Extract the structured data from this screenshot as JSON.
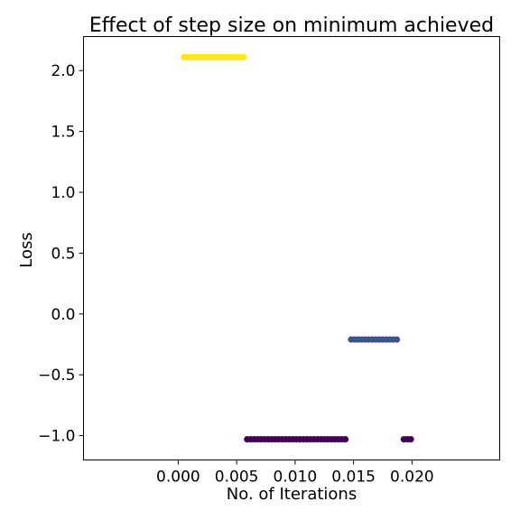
{
  "chart_data": {
    "type": "scatter",
    "title": "Effect of step size on minimum achieved",
    "xlabel": "No. of Iterations",
    "ylabel": "Loss",
    "xlim": [
      -0.0081,
      0.0275
    ],
    "ylim": [
      -1.2,
      2.28
    ],
    "xticks": [
      0.0,
      0.005,
      0.01,
      0.015,
      0.02
    ],
    "xtick_labels": [
      "0.000",
      "0.005",
      "0.010",
      "0.015",
      "0.020"
    ],
    "yticks": [
      -1.0,
      -0.5,
      0.0,
      0.5,
      1.0,
      1.5,
      2.0
    ],
    "ytick_labels": [
      "−1.0",
      "−0.5",
      "0.0",
      "0.5",
      "1.0",
      "1.5",
      "2.0"
    ],
    "grid": false,
    "series": [
      {
        "color": "#fde725",
        "points": [
          {
            "x": 0.0005,
            "y": 2.11
          },
          {
            "x": 0.0008,
            "y": 2.11
          },
          {
            "x": 0.0011,
            "y": 2.11
          },
          {
            "x": 0.0014,
            "y": 2.11
          },
          {
            "x": 0.0017,
            "y": 2.11
          },
          {
            "x": 0.002,
            "y": 2.11
          },
          {
            "x": 0.0023,
            "y": 2.11
          },
          {
            "x": 0.0026,
            "y": 2.11
          },
          {
            "x": 0.0029,
            "y": 2.11
          },
          {
            "x": 0.0032,
            "y": 2.11
          },
          {
            "x": 0.0035,
            "y": 2.11
          },
          {
            "x": 0.0038,
            "y": 2.11
          },
          {
            "x": 0.0041,
            "y": 2.11
          },
          {
            "x": 0.0044,
            "y": 2.11
          },
          {
            "x": 0.0047,
            "y": 2.11
          },
          {
            "x": 0.005,
            "y": 2.11
          },
          {
            "x": 0.0053,
            "y": 2.11
          },
          {
            "x": 0.0056,
            "y": 2.11
          }
        ]
      },
      {
        "color": "#3b528b",
        "points": [
          {
            "x": 0.0148,
            "y": -0.21
          },
          {
            "x": 0.0151,
            "y": -0.21
          },
          {
            "x": 0.0154,
            "y": -0.21
          },
          {
            "x": 0.0157,
            "y": -0.21
          },
          {
            "x": 0.016,
            "y": -0.21
          },
          {
            "x": 0.0163,
            "y": -0.21
          },
          {
            "x": 0.0166,
            "y": -0.21
          },
          {
            "x": 0.0169,
            "y": -0.21
          },
          {
            "x": 0.0172,
            "y": -0.21
          },
          {
            "x": 0.0175,
            "y": -0.21
          },
          {
            "x": 0.0178,
            "y": -0.21
          },
          {
            "x": 0.0181,
            "y": -0.21
          },
          {
            "x": 0.0184,
            "y": -0.21
          },
          {
            "x": 0.0187,
            "y": -0.21
          }
        ]
      },
      {
        "color": "#440154",
        "points": [
          {
            "x": 0.0059,
            "y": -1.03
          },
          {
            "x": 0.0062,
            "y": -1.03
          },
          {
            "x": 0.0065,
            "y": -1.03
          },
          {
            "x": 0.0068,
            "y": -1.03
          },
          {
            "x": 0.0071,
            "y": -1.03
          },
          {
            "x": 0.0074,
            "y": -1.03
          },
          {
            "x": 0.0077,
            "y": -1.03
          },
          {
            "x": 0.008,
            "y": -1.03
          },
          {
            "x": 0.0083,
            "y": -1.03
          },
          {
            "x": 0.0086,
            "y": -1.03
          },
          {
            "x": 0.0089,
            "y": -1.03
          },
          {
            "x": 0.0092,
            "y": -1.03
          },
          {
            "x": 0.0095,
            "y": -1.03
          },
          {
            "x": 0.0098,
            "y": -1.03
          },
          {
            "x": 0.0101,
            "y": -1.03
          },
          {
            "x": 0.0104,
            "y": -1.03
          },
          {
            "x": 0.0107,
            "y": -1.03
          },
          {
            "x": 0.011,
            "y": -1.03
          },
          {
            "x": 0.0113,
            "y": -1.03
          },
          {
            "x": 0.0116,
            "y": -1.03
          },
          {
            "x": 0.0119,
            "y": -1.03
          },
          {
            "x": 0.0122,
            "y": -1.03
          },
          {
            "x": 0.0125,
            "y": -1.03
          },
          {
            "x": 0.0128,
            "y": -1.03
          },
          {
            "x": 0.0131,
            "y": -1.03
          },
          {
            "x": 0.0134,
            "y": -1.03
          },
          {
            "x": 0.0137,
            "y": -1.03
          },
          {
            "x": 0.014,
            "y": -1.03
          },
          {
            "x": 0.0143,
            "y": -1.03
          },
          {
            "x": 0.0193,
            "y": -1.03
          },
          {
            "x": 0.0196,
            "y": -1.03
          },
          {
            "x": 0.0199,
            "y": -1.03
          }
        ]
      }
    ]
  }
}
